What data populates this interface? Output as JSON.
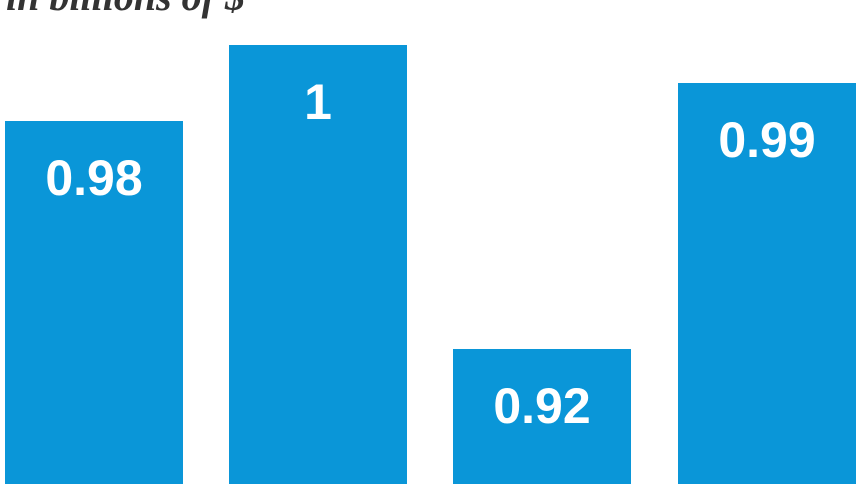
{
  "chart_data": {
    "type": "bar",
    "subtitle": "in billions of $",
    "categories": [
      "",
      "",
      "",
      ""
    ],
    "values": [
      0.98,
      1,
      0.92,
      0.99
    ],
    "data_labels": [
      "0.98",
      "1",
      "0.92",
      "0.99"
    ],
    "bar_color": "#0a96d8",
    "grid": false,
    "legend": "none"
  }
}
